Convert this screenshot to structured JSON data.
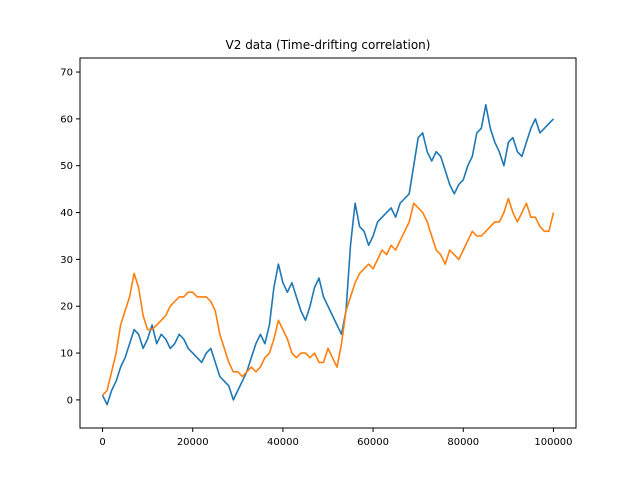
{
  "chart_data": {
    "type": "line",
    "title": "V2 data (Time-drifting correlation)",
    "xlabel": "",
    "ylabel": "",
    "xlim": [
      -5000,
      105000
    ],
    "ylim": [
      -6,
      73
    ],
    "xticks": [
      0,
      20000,
      40000,
      60000,
      80000,
      100000
    ],
    "xtick_labels": [
      "0",
      "20000",
      "40000",
      "60000",
      "80000",
      "100000"
    ],
    "yticks": [
      0,
      10,
      20,
      30,
      40,
      50,
      60,
      70
    ],
    "ytick_labels": [
      "0",
      "10",
      "20",
      "30",
      "40",
      "50",
      "60",
      "70"
    ],
    "grid": false,
    "legend": "none",
    "series": [
      {
        "color": "#1f77b4",
        "x": [
          0,
          1000,
          2000,
          3000,
          4000,
          5000,
          6000,
          7000,
          8000,
          9000,
          10000,
          11000,
          12000,
          13000,
          14000,
          15000,
          16000,
          17000,
          18000,
          19000,
          20000,
          21000,
          22000,
          23000,
          24000,
          25000,
          26000,
          27000,
          28000,
          29000,
          30000,
          31000,
          32000,
          33000,
          34000,
          35000,
          36000,
          37000,
          38000,
          39000,
          40000,
          41000,
          42000,
          43000,
          44000,
          45000,
          46000,
          47000,
          48000,
          49000,
          50000,
          51000,
          52000,
          53000,
          54000,
          55000,
          56000,
          57000,
          58000,
          59000,
          60000,
          61000,
          62000,
          63000,
          64000,
          65000,
          66000,
          67000,
          68000,
          69000,
          70000,
          71000,
          72000,
          73000,
          74000,
          75000,
          76000,
          77000,
          78000,
          79000,
          80000,
          81000,
          82000,
          83000,
          84000,
          85000,
          86000,
          87000,
          88000,
          89000,
          90000,
          91000,
          92000,
          93000,
          94000,
          95000,
          96000,
          97000,
          98000,
          99000,
          100000
        ],
        "y": [
          1,
          -1,
          2,
          4,
          7,
          9,
          12,
          15,
          14,
          11,
          13,
          16,
          12,
          14,
          13,
          11,
          12,
          14,
          13,
          11,
          10,
          9,
          8,
          10,
          11,
          8,
          5,
          4,
          3,
          0,
          2,
          4,
          6,
          9,
          12,
          14,
          12,
          16,
          24,
          29,
          25,
          23,
          25,
          22,
          19,
          17,
          20,
          24,
          26,
          22,
          20,
          18,
          16,
          14,
          19,
          33,
          42,
          37,
          36,
          33,
          35,
          38,
          39,
          40,
          41,
          39,
          42,
          43,
          44,
          50,
          56,
          57,
          53,
          51,
          53,
          52,
          49,
          46,
          44,
          46,
          47,
          50,
          52,
          57,
          58,
          63,
          58,
          55,
          53,
          50,
          55,
          56,
          53,
          52,
          55,
          58,
          60,
          57,
          58,
          59,
          60
        ]
      },
      {
        "color": "#ff7f0e",
        "x": [
          0,
          1000,
          2000,
          3000,
          4000,
          5000,
          6000,
          7000,
          8000,
          9000,
          10000,
          11000,
          12000,
          13000,
          14000,
          15000,
          16000,
          17000,
          18000,
          19000,
          20000,
          21000,
          22000,
          23000,
          24000,
          25000,
          26000,
          27000,
          28000,
          29000,
          30000,
          31000,
          32000,
          33000,
          34000,
          35000,
          36000,
          37000,
          38000,
          39000,
          40000,
          41000,
          42000,
          43000,
          44000,
          45000,
          46000,
          47000,
          48000,
          49000,
          50000,
          51000,
          52000,
          53000,
          54000,
          55000,
          56000,
          57000,
          58000,
          59000,
          60000,
          61000,
          62000,
          63000,
          64000,
          65000,
          66000,
          67000,
          68000,
          69000,
          70000,
          71000,
          72000,
          73000,
          74000,
          75000,
          76000,
          77000,
          78000,
          79000,
          80000,
          81000,
          82000,
          83000,
          84000,
          85000,
          86000,
          87000,
          88000,
          89000,
          90000,
          91000,
          92000,
          93000,
          94000,
          95000,
          96000,
          97000,
          98000,
          99000,
          100000
        ],
        "y": [
          1,
          2,
          6,
          10,
          16,
          19,
          22,
          27,
          24,
          18,
          15,
          15,
          16,
          17,
          18,
          20,
          21,
          22,
          22,
          23,
          23,
          22,
          22,
          22,
          21,
          19,
          14,
          11,
          8,
          6,
          6,
          5,
          6,
          7,
          6,
          7,
          9,
          10,
          13,
          17,
          15,
          13,
          10,
          9,
          10,
          10,
          9,
          10,
          8,
          8,
          11,
          9,
          7,
          12,
          19,
          22,
          25,
          27,
          28,
          29,
          28,
          30,
          32,
          31,
          33,
          32,
          34,
          36,
          38,
          42,
          41,
          40,
          38,
          35,
          32,
          31,
          29,
          32,
          31,
          30,
          32,
          34,
          36,
          35,
          35,
          36,
          37,
          38,
          38,
          40,
          43,
          40,
          38,
          40,
          42,
          39,
          39,
          37,
          36,
          36,
          40
        ]
      }
    ]
  }
}
